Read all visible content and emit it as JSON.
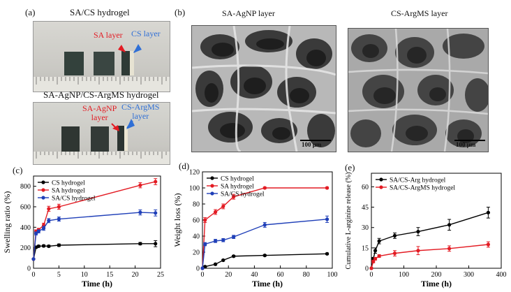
{
  "panel_a": {
    "label": "(a)",
    "title1": "SA/CS hydrogel",
    "title2": "SA-AgNP/CS-ArgMS hydrogel",
    "photo1": {
      "sa_layer": "SA layer",
      "cs_layer": "CS layer"
    },
    "photo2": {
      "sa_line1": "SA-AgNP",
      "sa_line2": "layer",
      "cs_line1": "CS-ArgMS",
      "cs_line2": "layer"
    },
    "colors": {
      "sa": "#e31b23",
      "cs": "#2f6fd6"
    }
  },
  "panel_b": {
    "label": "(b)",
    "left_title": "SA-AgNP layer",
    "right_title": "CS-ArgMS layer",
    "scale_left": "100 μm",
    "scale_right": "100 μm"
  },
  "panel_c": {
    "label": "(c)"
  },
  "panel_d": {
    "label": "(d)"
  },
  "panel_e": {
    "label": "(e)"
  },
  "chart_data": [
    {
      "id": "c",
      "type": "line",
      "xlabel": "Time (h)",
      "ylabel": "Swelling ratio (%)",
      "xlim": [
        0,
        25
      ],
      "ylim": [
        0,
        900
      ],
      "xticks": [
        0,
        5,
        10,
        15,
        20,
        25
      ],
      "yticks": [
        0,
        200,
        400,
        600,
        800
      ],
      "legend": "top-left",
      "series": [
        {
          "name": "CS hydrogel",
          "color": "#000000",
          "x": [
            0,
            0.5,
            1,
            2,
            3,
            5,
            21,
            24
          ],
          "y": [
            90,
            205,
            215,
            218,
            215,
            225,
            240,
            240
          ],
          "err": [
            0,
            10,
            10,
            10,
            10,
            12,
            12,
            30
          ]
        },
        {
          "name": "SA hydrogel",
          "color": "#e31b23",
          "x": [
            0,
            0.5,
            1,
            2,
            3,
            5,
            21,
            24
          ],
          "y": [
            90,
            360,
            375,
            420,
            580,
            600,
            810,
            845
          ],
          "err": [
            0,
            15,
            15,
            20,
            25,
            25,
            25,
            30
          ]
        },
        {
          "name": "SA/CS hydrogel",
          "color": "#1f3fb8",
          "x": [
            0,
            0.5,
            1,
            2,
            3,
            5,
            21,
            24
          ],
          "y": [
            90,
            340,
            360,
            390,
            465,
            480,
            545,
            540
          ],
          "err": [
            0,
            15,
            15,
            20,
            20,
            20,
            25,
            30
          ]
        }
      ]
    },
    {
      "id": "d",
      "type": "line",
      "xlabel": "Time (h)",
      "ylabel": "Weight loss (%)",
      "xlim": [
        0,
        100
      ],
      "ylim": [
        0,
        120
      ],
      "xticks": [
        0,
        20,
        40,
        60,
        80,
        100
      ],
      "yticks": [
        0,
        20,
        40,
        60,
        80,
        100,
        120
      ],
      "legend": "top-left",
      "series": [
        {
          "name": "CS hydrogel",
          "color": "#000000",
          "x": [
            0,
            2,
            10,
            16,
            24,
            48,
            96
          ],
          "y": [
            0,
            2,
            5,
            10,
            15,
            16,
            18
          ],
          "err": [
            0,
            1,
            1,
            1,
            1,
            1,
            1
          ]
        },
        {
          "name": "SA hydrogel",
          "color": "#e31b23",
          "x": [
            0,
            2,
            10,
            16,
            24,
            48,
            96
          ],
          "y": [
            0,
            60,
            70,
            77,
            89,
            100,
            100
          ],
          "err": [
            0,
            3,
            3,
            3,
            3,
            1,
            1
          ]
        },
        {
          "name": "SA/CS hydrogel",
          "color": "#1f3fb8",
          "x": [
            0,
            2,
            10,
            16,
            24,
            48,
            96
          ],
          "y": [
            0,
            30,
            34,
            35,
            39,
            54,
            61
          ],
          "err": [
            0,
            2,
            2,
            2,
            2,
            3,
            4
          ]
        }
      ]
    },
    {
      "id": "e",
      "type": "line",
      "xlabel": "Time (h)",
      "ylabel": "Cumulative L-arginine release (%)",
      "xlim": [
        0,
        400
      ],
      "ylim": [
        0,
        70
      ],
      "xticks": [
        0,
        100,
        200,
        300,
        400
      ],
      "yticks": [
        0,
        15,
        30,
        45,
        60
      ],
      "legend": "top-left",
      "series": [
        {
          "name": "SA/CS-Arg hydrogel",
          "color": "#000000",
          "x": [
            0,
            6,
            12,
            24,
            72,
            144,
            240,
            360
          ],
          "y": [
            0,
            7,
            13,
            20,
            24,
            27,
            32,
            41
          ],
          "err": [
            0,
            1,
            2,
            2,
            2,
            3,
            4,
            4
          ]
        },
        {
          "name": "SA/CS-ArgMS hydrogel",
          "color": "#e31b23",
          "x": [
            0,
            6,
            12,
            24,
            72,
            144,
            240,
            360
          ],
          "y": [
            0,
            5,
            7,
            9,
            11,
            13,
            14.5,
            17.5
          ],
          "err": [
            0,
            1,
            1,
            1,
            2,
            3,
            2,
            2
          ]
        }
      ]
    }
  ]
}
